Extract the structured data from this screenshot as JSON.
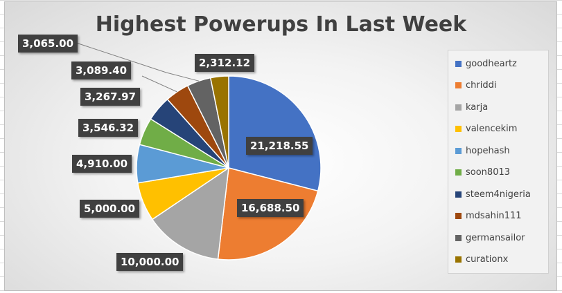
{
  "chart_data": {
    "type": "pie",
    "title": "Highest Powerups In Last Week",
    "legend_position": "right",
    "categories": [
      "goodheartz",
      "chriddi",
      "karja",
      "valencekim",
      "hopehash",
      "soon8013",
      "steem4nigeria",
      "mdsahin111",
      "germansailor",
      "curationx"
    ],
    "values": [
      21218.55,
      16688.5,
      10000.0,
      5000.0,
      4910.0,
      3546.32,
      3267.97,
      3089.4,
      3065.0,
      2312.12
    ],
    "data_labels": [
      "21,218.55",
      "16,688.50",
      "10,000.00",
      "5,000.00",
      "4,910.00",
      "3,546.32",
      "3,267.97",
      "3,089.40",
      "3,065.00",
      "2,312.12"
    ],
    "colors": [
      "#4472C4",
      "#ED7D31",
      "#A5A5A5",
      "#FFC000",
      "#5B9BD5",
      "#70AD47",
      "#264478",
      "#9E480E",
      "#636363",
      "#997300"
    ]
  }
}
